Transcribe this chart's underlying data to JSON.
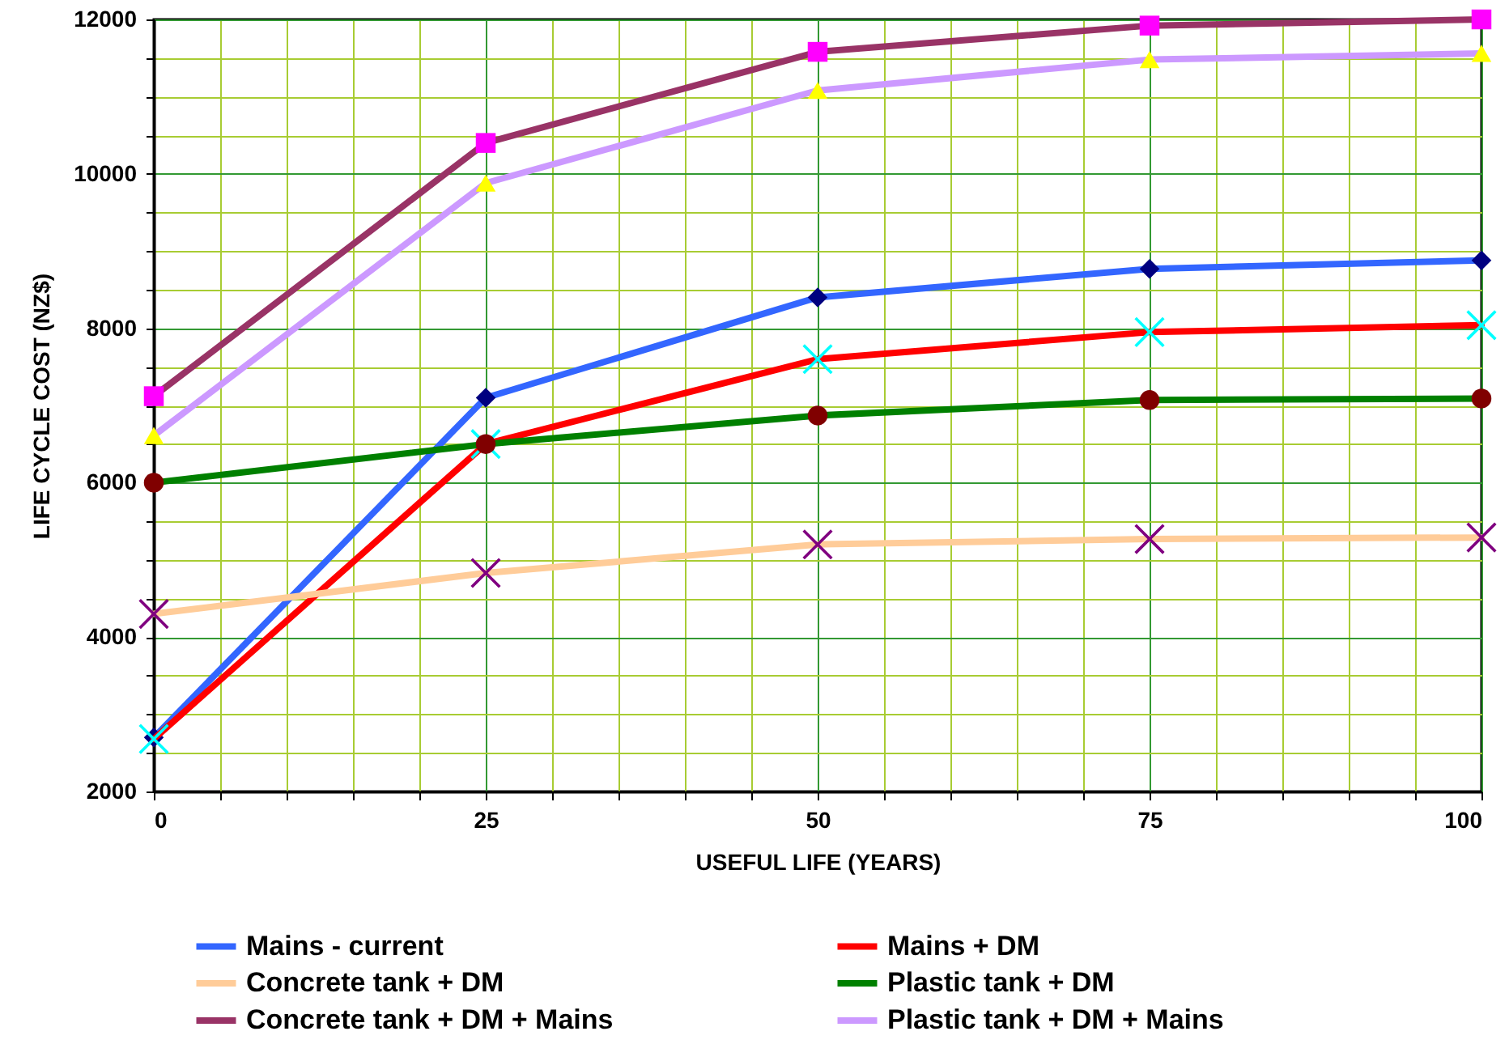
{
  "chart_data": {
    "type": "line",
    "xlabel": "USEFUL LIFE (YEARS)",
    "ylabel": "LIFE CYCLE COST (NZ$)",
    "x": [
      0,
      25,
      50,
      75,
      100
    ],
    "xlim": [
      0,
      100
    ],
    "ylim": [
      2000,
      12000
    ],
    "xticks": [
      0,
      {
        "value": 5,
        "label": null
      },
      {
        "value": 10,
        "label": null
      },
      {
        "value": 15,
        "label": null
      },
      {
        "value": 20,
        "label": null
      },
      25,
      {
        "value": 30,
        "label": null
      },
      {
        "value": 35,
        "label": null
      },
      {
        "value": 40,
        "label": null
      },
      {
        "value": 45,
        "label": null
      },
      50,
      {
        "value": 55,
        "label": null
      },
      {
        "value": 60,
        "label": null
      },
      {
        "value": 65,
        "label": null
      },
      {
        "value": 70,
        "label": null
      },
      75,
      {
        "value": 80,
        "label": null
      },
      {
        "value": 85,
        "label": null
      },
      {
        "value": 90,
        "label": null
      },
      {
        "value": 95,
        "label": null
      },
      100
    ],
    "yticks": [
      2000,
      {
        "value": 2500,
        "label": null
      },
      {
        "value": 3000,
        "label": null
      },
      {
        "value": 3500,
        "label": null
      },
      4000,
      {
        "value": 4500,
        "label": null
      },
      {
        "value": 5000,
        "label": null
      },
      {
        "value": 5500,
        "label": null
      },
      6000,
      {
        "value": 6500,
        "label": null
      },
      {
        "value": 7000,
        "label": null
      },
      {
        "value": 7500,
        "label": null
      },
      8000,
      {
        "value": 8500,
        "label": null
      },
      {
        "value": 9000,
        "label": null
      },
      {
        "value": 9500,
        "label": null
      },
      10000,
      {
        "value": 10500,
        "label": null
      },
      {
        "value": 11000,
        "label": null
      },
      {
        "value": 11500,
        "label": null
      },
      12000
    ],
    "grid": true,
    "legend": "bottom",
    "line_style": "solid",
    "series": [
      {
        "name": "Mains - current",
        "color": "#3366ff",
        "marker": "diamond",
        "colors": [
          "#000080",
          "#000080",
          "#000080",
          "#000080",
          "#000080"
        ],
        "values": [
          2700,
          7100,
          8400,
          8770,
          8880
        ]
      },
      {
        "name": "Mains + DM",
        "color": "#ff0000",
        "marker": "cross",
        "colors": [
          "#00ffff",
          "#00ffff",
          "#00ffff",
          "#00ffff",
          "#00ffff"
        ],
        "values": [
          2680,
          6500,
          7600,
          7950,
          8040
        ]
      },
      {
        "name": "Concrete tank + DM",
        "color": "#ffcc99",
        "marker": "cross",
        "colors": [
          "#800080",
          "#800080",
          "#800080",
          "#800080",
          "#800080"
        ],
        "values": [
          4300,
          4830,
          5200,
          5270,
          5290
        ]
      },
      {
        "name": "Plastic tank + DM",
        "color": "#008000",
        "marker": "circle",
        "colors": [
          "#800000",
          "#800000",
          "#800000",
          "#800000",
          "#800000"
        ],
        "values": [
          6000,
          6500,
          6870,
          7070,
          7090
        ]
      },
      {
        "name": "Concrete tank + DM + Mains",
        "color": "#993366",
        "marker": "square",
        "colors": [
          "#ff00ff",
          "#ff00ff",
          "#ff00ff",
          "#ff00ff",
          "#ff00ff"
        ],
        "values": [
          7120,
          10400,
          11580,
          11920,
          12000
        ]
      },
      {
        "name": "Plastic tank + DM + Mains",
        "color": "#cc99ff",
        "marker": "triangle",
        "colors": [
          "#ffff00",
          "#ffff00",
          "#ffff00",
          "#ffff00",
          "#ffff00"
        ],
        "values": [
          6610,
          9880,
          11080,
          11480,
          11560
        ]
      }
    ]
  }
}
